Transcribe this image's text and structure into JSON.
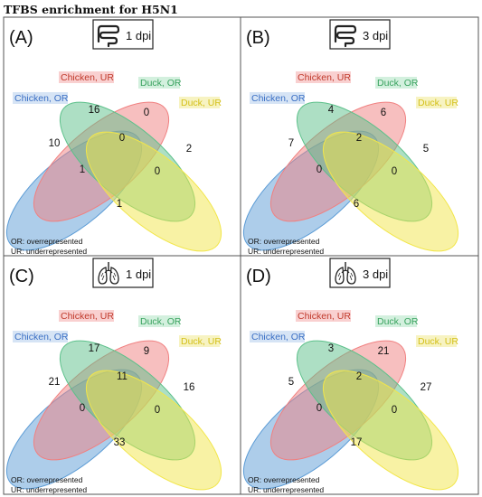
{
  "title": "TFBS enrichment for H5N1",
  "colors": {
    "chicken_or": "#5b9bd5",
    "chicken_ur": "#f08080",
    "duck_or": "#5cc08a",
    "duck_ur": "#f2e64a",
    "chicken_or_label": "#3a6fc4",
    "chicken_ur_label": "#c0392b",
    "duck_or_label": "#3aa35f",
    "duck_ur_label": "#d4c01a",
    "border": "#555555"
  },
  "set_labels": {
    "chicken_or": "Chicken, OR",
    "chicken_ur": "Chicken, UR",
    "duck_or": "Duck, OR",
    "duck_ur": "Duck, UR"
  },
  "legend": {
    "or": "OR: overrepresented",
    "ur": "UR: underrepresented"
  },
  "panels": [
    {
      "letter": "(A)",
      "icon": "intestine-icon",
      "dpi": "1 dpi",
      "counts": {
        "chicken_or_only": "10",
        "chicken_ur_only": "16",
        "duck_or_only": "0",
        "duck_ur_only": "2",
        "chicken_ur_duck_or": "0",
        "chicken_or_chicken_ur": "1",
        "duck_or_duck_ur": "0",
        "chicken_or_duck_ur": "1"
      }
    },
    {
      "letter": "(B)",
      "icon": "intestine-icon",
      "dpi": "3 dpi",
      "counts": {
        "chicken_or_only": "7",
        "chicken_ur_only": "4",
        "duck_or_only": "6",
        "duck_ur_only": "5",
        "chicken_ur_duck_or": "2",
        "chicken_or_chicken_ur": "0",
        "duck_or_duck_ur": "0",
        "chicken_or_duck_ur": "6"
      }
    },
    {
      "letter": "(C)",
      "icon": "lungs-icon",
      "dpi": "1 dpi",
      "counts": {
        "chicken_or_only": "21",
        "chicken_ur_only": "17",
        "duck_or_only": "9",
        "duck_ur_only": "16",
        "chicken_ur_duck_or": "11",
        "chicken_or_chicken_ur": "0",
        "duck_or_duck_ur": "0",
        "chicken_or_duck_ur": "33"
      }
    },
    {
      "letter": "(D)",
      "icon": "lungs-icon",
      "dpi": "3 dpi",
      "counts": {
        "chicken_or_only": "5",
        "chicken_ur_only": "3",
        "duck_or_only": "21",
        "duck_ur_only": "27",
        "chicken_ur_duck_or": "2",
        "chicken_or_chicken_ur": "0",
        "duck_or_duck_ur": "0",
        "chicken_or_duck_ur": "17"
      }
    }
  ]
}
